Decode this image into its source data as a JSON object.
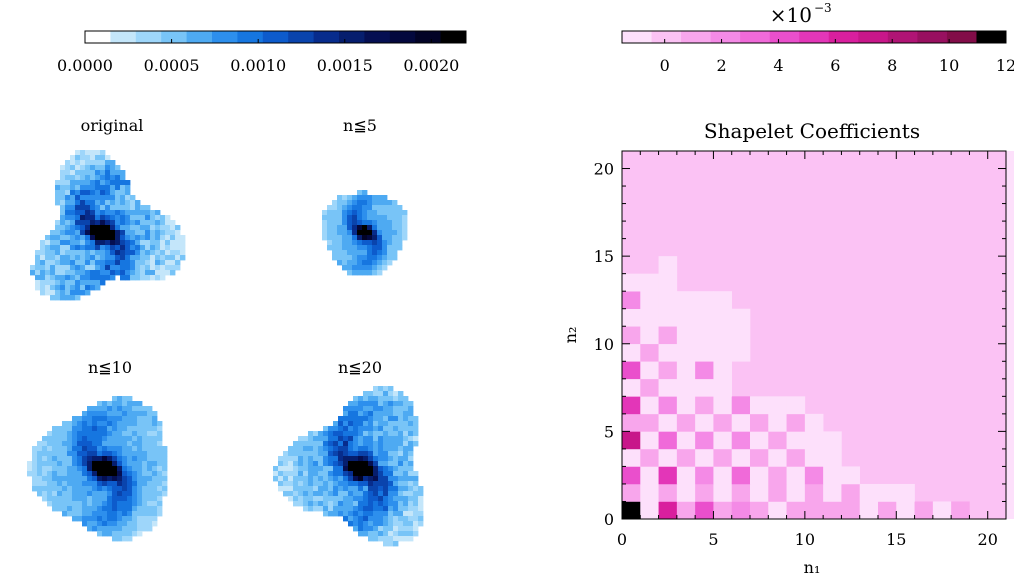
{
  "blue_colorbar": {
    "ticks": [
      "0.0000",
      "0.0005",
      "0.0010",
      "0.0015",
      "0.0020"
    ],
    "colors": [
      "#ffffff",
      "#c4e6fa",
      "#9ed6fa",
      "#78c4f7",
      "#4eaaf2",
      "#2d8fed",
      "#1676e0",
      "#0d5bcc",
      "#0a44ad",
      "#072c8c",
      "#061e6e",
      "#050f52",
      "#03083d",
      "#020326",
      "#000000"
    ]
  },
  "panels": [
    {
      "title": "original"
    },
    {
      "title": "n≦5"
    },
    {
      "title": "n≦10"
    },
    {
      "title": "n≦20"
    }
  ],
  "pink_colorbar": {
    "multiplier": "×10",
    "exponent": "−3",
    "ticks": [
      "0",
      "2",
      "4",
      "6",
      "8",
      "10",
      "12"
    ],
    "colors": [
      "#fde0fb",
      "#fbc2f4",
      "#f8a6ec",
      "#f48ae6",
      "#f06ad9",
      "#ea4fcc",
      "#e336b8",
      "#d91f9e",
      "#c8178a",
      "#b01475",
      "#981060",
      "#820c48",
      "#000000"
    ]
  },
  "chart_data": {
    "type": "heatmap",
    "title": "Shapelet Coefficients",
    "xlabel": "n₁",
    "ylabel": "n₂",
    "xlim": [
      0,
      21
    ],
    "ylim": [
      0,
      21
    ],
    "xticks": [
      0,
      5,
      10,
      15,
      20
    ],
    "yticks": [
      0,
      5,
      10,
      15,
      20
    ],
    "value_scale": "×10⁻³",
    "color_range": [
      -1.5,
      12
    ],
    "background_value": 0,
    "note": "values in units of 1e-3; cells not listed equal background_value",
    "cells": [
      {
        "n1": 0,
        "n2": 0,
        "v": 12
      },
      {
        "n1": 1,
        "n2": 0,
        "v": -1
      },
      {
        "n1": 2,
        "n2": 0,
        "v": 6
      },
      {
        "n1": 3,
        "n2": 0,
        "v": 1
      },
      {
        "n1": 4,
        "n2": 0,
        "v": 4
      },
      {
        "n1": 5,
        "n2": 0,
        "v": 1
      },
      {
        "n1": 6,
        "n2": 0,
        "v": 2
      },
      {
        "n1": 7,
        "n2": 0,
        "v": 1
      },
      {
        "n1": 8,
        "n2": 0,
        "v": -1
      },
      {
        "n1": 9,
        "n2": 0,
        "v": 1
      },
      {
        "n1": 10,
        "n2": 0,
        "v": 1
      },
      {
        "n1": 11,
        "n2": 0,
        "v": 1
      },
      {
        "n1": 12,
        "n2": 0,
        "v": 1
      },
      {
        "n1": 13,
        "n2": 0,
        "v": -0.5
      },
      {
        "n1": 14,
        "n2": 0,
        "v": 1
      },
      {
        "n1": 15,
        "n2": 0,
        "v": -0.5
      },
      {
        "n1": 16,
        "n2": 0,
        "v": 1
      },
      {
        "n1": 17,
        "n2": 0,
        "v": -0.5
      },
      {
        "n1": 18,
        "n2": 0,
        "v": 1
      },
      {
        "n1": 0,
        "n2": 1,
        "v": 1
      },
      {
        "n1": 1,
        "n2": 1,
        "v": -1
      },
      {
        "n1": 2,
        "n2": 1,
        "v": 1
      },
      {
        "n1": 3,
        "n2": 1,
        "v": -0.5
      },
      {
        "n1": 4,
        "n2": 1,
        "v": 1
      },
      {
        "n1": 5,
        "n2": 1,
        "v": -0.5
      },
      {
        "n1": 6,
        "n2": 1,
        "v": 1
      },
      {
        "n1": 7,
        "n2": 1,
        "v": -0.5
      },
      {
        "n1": 8,
        "n2": 1,
        "v": 1
      },
      {
        "n1": 9,
        "n2": 1,
        "v": -0.5
      },
      {
        "n1": 10,
        "n2": 1,
        "v": 1
      },
      {
        "n1": 11,
        "n2": 1,
        "v": -0.5
      },
      {
        "n1": 12,
        "n2": 1,
        "v": 1
      },
      {
        "n1": 13,
        "n2": 1,
        "v": -0.5
      },
      {
        "n1": 14,
        "n2": 1,
        "v": -0.5
      },
      {
        "n1": 15,
        "n2": 1,
        "v": -0.5
      },
      {
        "n1": 0,
        "n2": 2,
        "v": 4
      },
      {
        "n1": 1,
        "n2": 2,
        "v": -0.5
      },
      {
        "n1": 2,
        "n2": 2,
        "v": 5
      },
      {
        "n1": 3,
        "n2": 2,
        "v": -0.5
      },
      {
        "n1": 4,
        "n2": 2,
        "v": 2
      },
      {
        "n1": 5,
        "n2": 2,
        "v": -0.5
      },
      {
        "n1": 6,
        "n2": 2,
        "v": 3
      },
      {
        "n1": 7,
        "n2": 2,
        "v": -0.5
      },
      {
        "n1": 8,
        "n2": 2,
        "v": 1
      },
      {
        "n1": 9,
        "n2": 2,
        "v": -0.5
      },
      {
        "n1": 10,
        "n2": 2,
        "v": 2
      },
      {
        "n1": 11,
        "n2": 2,
        "v": -0.5
      },
      {
        "n1": 12,
        "n2": 2,
        "v": -0.5
      },
      {
        "n1": 0,
        "n2": 3,
        "v": -1
      },
      {
        "n1": 1,
        "n2": 3,
        "v": 1
      },
      {
        "n1": 2,
        "n2": 3,
        "v": -0.5
      },
      {
        "n1": 3,
        "n2": 3,
        "v": 1
      },
      {
        "n1": 4,
        "n2": 3,
        "v": -0.5
      },
      {
        "n1": 5,
        "n2": 3,
        "v": 1
      },
      {
        "n1": 6,
        "n2": 3,
        "v": -0.5
      },
      {
        "n1": 7,
        "n2": 3,
        "v": 1
      },
      {
        "n1": 8,
        "n2": 3,
        "v": -0.5
      },
      {
        "n1": 9,
        "n2": 3,
        "v": 1
      },
      {
        "n1": 10,
        "n2": 3,
        "v": -0.5
      },
      {
        "n1": 11,
        "n2": 3,
        "v": -0.5
      },
      {
        "n1": 0,
        "n2": 4,
        "v": 7
      },
      {
        "n1": 1,
        "n2": 4,
        "v": -0.5
      },
      {
        "n1": 2,
        "n2": 4,
        "v": 3
      },
      {
        "n1": 3,
        "n2": 4,
        "v": -0.5
      },
      {
        "n1": 4,
        "n2": 4,
        "v": 2
      },
      {
        "n1": 5,
        "n2": 4,
        "v": -0.5
      },
      {
        "n1": 6,
        "n2": 4,
        "v": 2
      },
      {
        "n1": 7,
        "n2": 4,
        "v": -0.5
      },
      {
        "n1": 8,
        "n2": 4,
        "v": 1
      },
      {
        "n1": 9,
        "n2": 4,
        "v": -0.5
      },
      {
        "n1": 10,
        "n2": 4,
        "v": -0.5
      },
      {
        "n1": 11,
        "n2": 4,
        "v": -0.5
      },
      {
        "n1": 0,
        "n2": 5,
        "v": 1
      },
      {
        "n1": 1,
        "n2": 5,
        "v": 1
      },
      {
        "n1": 2,
        "n2": 5,
        "v": -0.5
      },
      {
        "n1": 3,
        "n2": 5,
        "v": 1
      },
      {
        "n1": 4,
        "n2": 5,
        "v": -0.5
      },
      {
        "n1": 5,
        "n2": 5,
        "v": 1
      },
      {
        "n1": 6,
        "n2": 5,
        "v": -0.5
      },
      {
        "n1": 7,
        "n2": 5,
        "v": 1
      },
      {
        "n1": 8,
        "n2": 5,
        "v": -0.5
      },
      {
        "n1": 9,
        "n2": 5,
        "v": 1
      },
      {
        "n1": 10,
        "n2": 5,
        "v": -0.5
      },
      {
        "n1": 0,
        "n2": 6,
        "v": 5
      },
      {
        "n1": 1,
        "n2": 6,
        "v": -0.5
      },
      {
        "n1": 2,
        "n2": 6,
        "v": 2
      },
      {
        "n1": 3,
        "n2": 6,
        "v": -0.5
      },
      {
        "n1": 4,
        "n2": 6,
        "v": 1
      },
      {
        "n1": 5,
        "n2": 6,
        "v": -0.5
      },
      {
        "n1": 6,
        "n2": 6,
        "v": 2
      },
      {
        "n1": 7,
        "n2": 6,
        "v": -0.5
      },
      {
        "n1": 8,
        "n2": 6,
        "v": -0.5
      },
      {
        "n1": 9,
        "n2": 6,
        "v": -0.5
      },
      {
        "n1": 0,
        "n2": 7,
        "v": -1
      },
      {
        "n1": 1,
        "n2": 7,
        "v": 1
      },
      {
        "n1": 2,
        "n2": 7,
        "v": -0.5
      },
      {
        "n1": 3,
        "n2": 7,
        "v": -0.5
      },
      {
        "n1": 4,
        "n2": 7,
        "v": -0.5
      },
      {
        "n1": 5,
        "n2": 7,
        "v": -0.5
      },
      {
        "n1": 0,
        "n2": 8,
        "v": 4
      },
      {
        "n1": 1,
        "n2": 8,
        "v": -0.5
      },
      {
        "n1": 2,
        "n2": 8,
        "v": 1
      },
      {
        "n1": 3,
        "n2": 8,
        "v": -0.5
      },
      {
        "n1": 4,
        "n2": 8,
        "v": 2
      },
      {
        "n1": 5,
        "n2": 8,
        "v": -0.5
      },
      {
        "n1": 0,
        "n2": 9,
        "v": -0.5
      },
      {
        "n1": 1,
        "n2": 9,
        "v": 1
      },
      {
        "n1": 2,
        "n2": 9,
        "v": -0.5
      },
      {
        "n1": 3,
        "n2": 9,
        "v": -0.5
      },
      {
        "n1": 4,
        "n2": 9,
        "v": -0.5
      },
      {
        "n1": 5,
        "n2": 9,
        "v": -0.5
      },
      {
        "n1": 6,
        "n2": 9,
        "v": -1
      },
      {
        "n1": 0,
        "n2": 10,
        "v": 1
      },
      {
        "n1": 1,
        "n2": 10,
        "v": -0.5
      },
      {
        "n1": 2,
        "n2": 10,
        "v": 1
      },
      {
        "n1": 3,
        "n2": 10,
        "v": -0.5
      },
      {
        "n1": 4,
        "n2": 10,
        "v": -0.5
      },
      {
        "n1": 5,
        "n2": 10,
        "v": -1
      },
      {
        "n1": 6,
        "n2": 10,
        "v": -0.5
      },
      {
        "n1": 0,
        "n2": 11,
        "v": -0.5
      },
      {
        "n1": 1,
        "n2": 11,
        "v": -1
      },
      {
        "n1": 2,
        "n2": 11,
        "v": -0.5
      },
      {
        "n1": 3,
        "n2": 11,
        "v": -1
      },
      {
        "n1": 4,
        "n2": 11,
        "v": -0.5
      },
      {
        "n1": 5,
        "n2": 11,
        "v": -0.5
      },
      {
        "n1": 6,
        "n2": 11,
        "v": -1
      },
      {
        "n1": 0,
        "n2": 12,
        "v": 2
      },
      {
        "n1": 1,
        "n2": 12,
        "v": -0.5
      },
      {
        "n1": 2,
        "n2": 12,
        "v": -0.5
      },
      {
        "n1": 3,
        "n2": 12,
        "v": -0.5
      },
      {
        "n1": 4,
        "n2": 12,
        "v": -1
      },
      {
        "n1": 5,
        "n2": 12,
        "v": -0.5
      },
      {
        "n1": 0,
        "n2": 13,
        "v": -0.5
      },
      {
        "n1": 1,
        "n2": 13,
        "v": -1
      },
      {
        "n1": 2,
        "n2": 13,
        "v": -0.5
      },
      {
        "n1": 2,
        "n2": 14,
        "v": -1
      }
    ]
  }
}
